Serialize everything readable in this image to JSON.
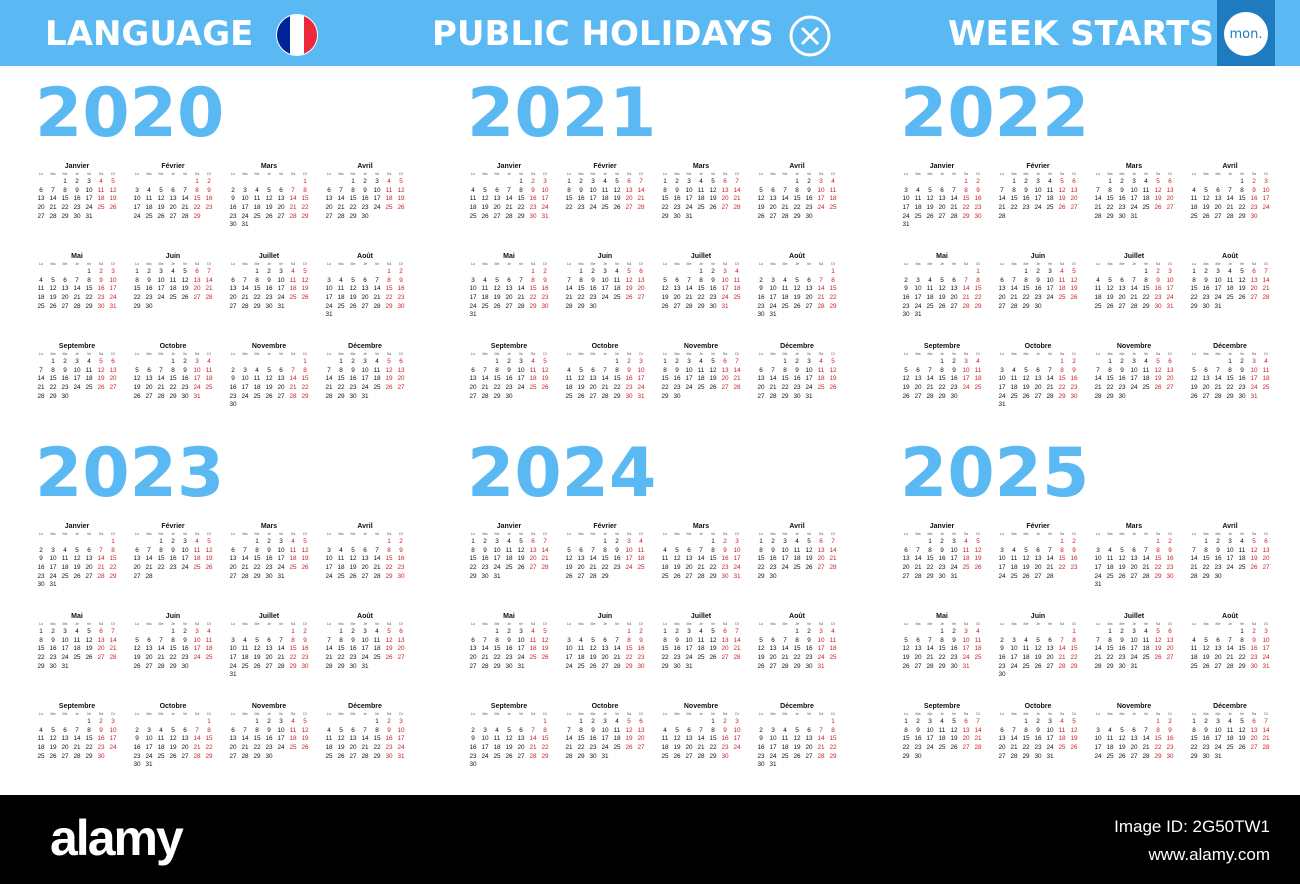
{
  "header": {
    "language_label": "LANGUAGE",
    "flag_colors": [
      "#002395",
      "#ffffff",
      "#ed2939"
    ],
    "public_holidays_label": "PUBLIC HOLIDAYS",
    "public_holidays_icon": "x-circle-icon",
    "week_starts_label": "WEEK STARTS",
    "week_start_value": "mon.",
    "accent_color": "#5ab9f3"
  },
  "weekday_headers": [
    "Lu",
    "Ma",
    "Me",
    "Je",
    "Ve",
    "Sa",
    "Di"
  ],
  "month_names": [
    "Janvier",
    "Février",
    "Mars",
    "Avril",
    "Mai",
    "Juin",
    "Juillet",
    "Août",
    "Septembre",
    "Octobre",
    "Novembre",
    "Décembre"
  ],
  "years": [
    {
      "year": "2020"
    },
    {
      "year": "2021"
    },
    {
      "year": "2022"
    },
    {
      "year": "2023"
    },
    {
      "year": "2024"
    },
    {
      "year": "2025"
    }
  ],
  "footer": {
    "logo": "alamy",
    "image_id": "Image ID: 2G50TW1",
    "url": "www.alamy.com"
  }
}
